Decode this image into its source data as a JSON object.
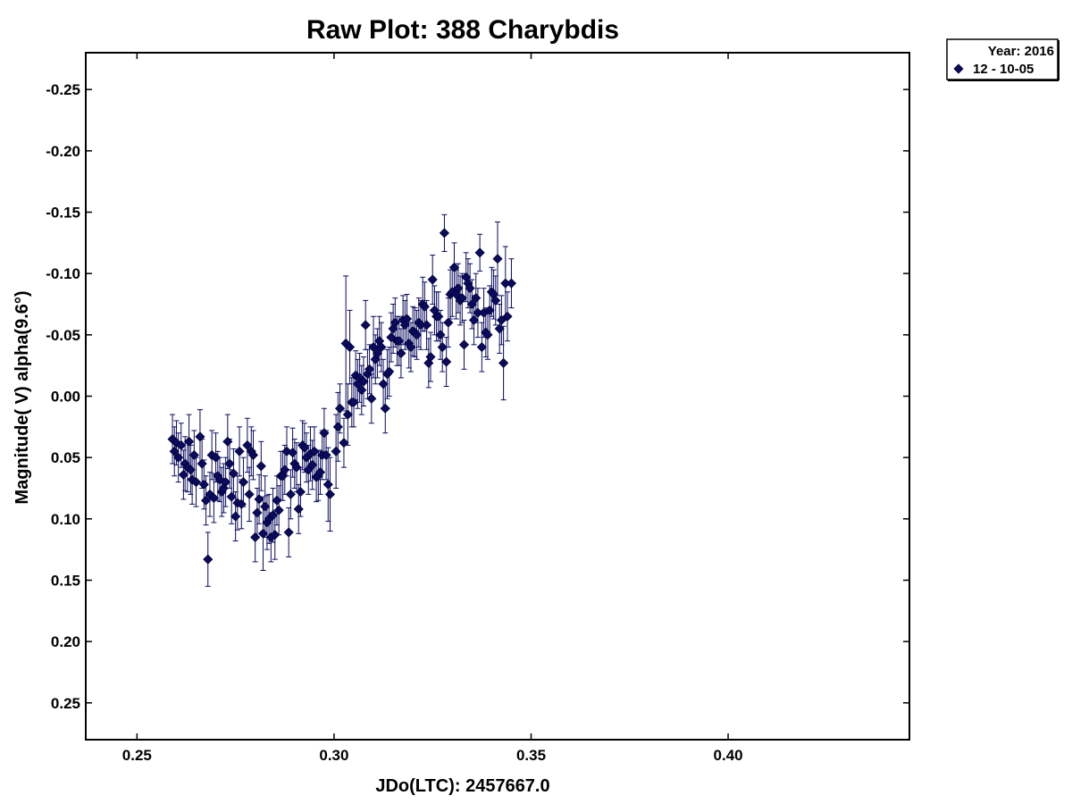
{
  "chart_data": {
    "type": "scatter",
    "title": "Raw Plot: 388 Charybdis",
    "xlabel": "JDo(LTC): 2457667.0",
    "ylabel": "Magnitude( V) alpha(9.6°)",
    "xlim": [
      0.237,
      0.446
    ],
    "ylim": [
      0.28,
      -0.28
    ],
    "y_inverted": true,
    "x_ticks": [
      "0.25",
      "0.30",
      "0.35",
      "0.40"
    ],
    "x_tick_values": [
      0.25,
      0.3,
      0.35,
      0.4
    ],
    "y_ticks": [
      "-0.25",
      "-0.20",
      "-0.15",
      "-0.10",
      "-0.05",
      "0.00",
      "0.05",
      "0.10",
      "0.15",
      "0.20",
      "0.25"
    ],
    "y_tick_values": [
      -0.25,
      -0.2,
      -0.15,
      -0.1,
      -0.05,
      0.0,
      0.05,
      0.1,
      0.15,
      0.2,
      0.25
    ],
    "legend": {
      "placement": "top-right-outside",
      "header": "Year: 2016",
      "entries": [
        "12 - 10-05"
      ]
    },
    "marker": "diamond",
    "color": "#0a0a60",
    "series": [
      {
        "name": "12 - 10-05",
        "points": [
          [
            0.259,
            0.035,
            0.02
          ],
          [
            0.2595,
            0.045,
            0.02
          ],
          [
            0.26,
            0.038,
            0.018
          ],
          [
            0.2605,
            0.05,
            0.02
          ],
          [
            0.2612,
            0.04,
            0.018
          ],
          [
            0.2618,
            0.064,
            0.02
          ],
          [
            0.2622,
            0.055,
            0.022
          ],
          [
            0.2628,
            0.058,
            0.02
          ],
          [
            0.2632,
            0.037,
            0.022
          ],
          [
            0.2636,
            0.06,
            0.02
          ],
          [
            0.264,
            0.068,
            0.02
          ],
          [
            0.2645,
            0.048,
            0.02
          ],
          [
            0.265,
            0.07,
            0.02
          ],
          [
            0.266,
            0.033,
            0.022
          ],
          [
            0.2665,
            0.055,
            0.02
          ],
          [
            0.267,
            0.072,
            0.02
          ],
          [
            0.2675,
            0.085,
            0.02
          ],
          [
            0.268,
            0.133,
            0.022
          ],
          [
            0.2685,
            0.08,
            0.018
          ],
          [
            0.269,
            0.048,
            0.02
          ],
          [
            0.2695,
            0.083,
            0.02
          ],
          [
            0.27,
            0.05,
            0.02
          ],
          [
            0.2705,
            0.065,
            0.02
          ],
          [
            0.271,
            0.068,
            0.018
          ],
          [
            0.2715,
            0.078,
            0.02
          ],
          [
            0.272,
            0.075,
            0.02
          ],
          [
            0.2725,
            0.07,
            0.02
          ],
          [
            0.273,
            0.037,
            0.022
          ],
          [
            0.2735,
            0.055,
            0.02
          ],
          [
            0.274,
            0.082,
            0.022
          ],
          [
            0.2745,
            0.063,
            0.02
          ],
          [
            0.275,
            0.098,
            0.02
          ],
          [
            0.2755,
            0.087,
            0.022
          ],
          [
            0.276,
            0.045,
            0.02
          ],
          [
            0.2765,
            0.088,
            0.02
          ],
          [
            0.277,
            0.07,
            0.02
          ],
          [
            0.278,
            0.04,
            0.022
          ],
          [
            0.2785,
            0.08,
            0.022
          ],
          [
            0.279,
            0.045,
            0.02
          ],
          [
            0.2795,
            0.048,
            0.02
          ],
          [
            0.28,
            0.115,
            0.02
          ],
          [
            0.2805,
            0.095,
            0.02
          ],
          [
            0.281,
            0.084,
            0.02
          ],
          [
            0.2815,
            0.057,
            0.02
          ],
          [
            0.282,
            0.112,
            0.03
          ],
          [
            0.2825,
            0.09,
            0.025
          ],
          [
            0.283,
            0.103,
            0.022
          ],
          [
            0.2835,
            0.1,
            0.02
          ],
          [
            0.284,
            0.115,
            0.02
          ],
          [
            0.2845,
            0.097,
            0.022
          ],
          [
            0.285,
            0.113,
            0.02
          ],
          [
            0.2855,
            0.085,
            0.02
          ],
          [
            0.286,
            0.093,
            0.02
          ],
          [
            0.2865,
            0.065,
            0.02
          ],
          [
            0.287,
            0.065,
            0.02
          ],
          [
            0.2875,
            0.06,
            0.02
          ],
          [
            0.288,
            0.045,
            0.02
          ],
          [
            0.2885,
            0.111,
            0.02
          ],
          [
            0.289,
            0.08,
            0.02
          ],
          [
            0.2895,
            0.046,
            0.02
          ],
          [
            0.29,
            0.055,
            0.02
          ],
          [
            0.2905,
            0.058,
            0.02
          ],
          [
            0.291,
            0.092,
            0.02
          ],
          [
            0.2915,
            0.078,
            0.02
          ],
          [
            0.292,
            0.04,
            0.02
          ],
          [
            0.2925,
            0.042,
            0.02
          ],
          [
            0.293,
            0.05,
            0.02
          ],
          [
            0.2935,
            0.06,
            0.02
          ],
          [
            0.294,
            0.047,
            0.022
          ],
          [
            0.2945,
            0.056,
            0.02
          ],
          [
            0.295,
            0.045,
            0.02
          ],
          [
            0.2955,
            0.066,
            0.02
          ],
          [
            0.296,
            0.065,
            0.02
          ],
          [
            0.2965,
            0.062,
            0.018
          ],
          [
            0.297,
            0.048,
            0.02
          ],
          [
            0.2975,
            0.03,
            0.02
          ],
          [
            0.298,
            0.048,
            0.02
          ],
          [
            0.2985,
            0.072,
            0.03
          ],
          [
            0.299,
            0.08,
            0.03
          ],
          [
            0.3005,
            0.045,
            0.03
          ],
          [
            0.301,
            0.025,
            0.028
          ],
          [
            0.3015,
            0.01,
            0.02
          ],
          [
            0.3025,
            0.038,
            0.02
          ],
          [
            0.303,
            -0.043,
            0.055
          ],
          [
            0.3035,
            0.015,
            0.025
          ],
          [
            0.304,
            -0.04,
            0.03
          ],
          [
            0.3045,
            0.005,
            0.02
          ],
          [
            0.305,
            0.005,
            0.02
          ],
          [
            0.3055,
            -0.017,
            0.02
          ],
          [
            0.306,
            -0.01,
            0.02
          ],
          [
            0.3065,
            -0.015,
            0.02
          ],
          [
            0.307,
            -0.005,
            0.02
          ],
          [
            0.3075,
            -0.012,
            0.02
          ],
          [
            0.308,
            -0.058,
            0.02
          ],
          [
            0.3085,
            -0.018,
            0.02
          ],
          [
            0.309,
            -0.022,
            0.02
          ],
          [
            0.3095,
            0.002,
            0.02
          ],
          [
            0.31,
            -0.04,
            0.025
          ],
          [
            0.3105,
            -0.03,
            0.02
          ],
          [
            0.311,
            -0.035,
            0.02
          ],
          [
            0.3115,
            -0.045,
            0.02
          ],
          [
            0.312,
            -0.04,
            0.02
          ],
          [
            0.3125,
            -0.01,
            0.02
          ],
          [
            0.313,
            0.01,
            0.02
          ],
          [
            0.3135,
            -0.018,
            0.02
          ],
          [
            0.314,
            -0.02,
            0.02
          ],
          [
            0.3145,
            -0.048,
            0.02
          ],
          [
            0.315,
            -0.055,
            0.02
          ],
          [
            0.3155,
            -0.06,
            0.02
          ],
          [
            0.316,
            -0.045,
            0.02
          ],
          [
            0.3165,
            -0.045,
            0.02
          ],
          [
            0.317,
            -0.035,
            0.02
          ],
          [
            0.3175,
            -0.062,
            0.02
          ],
          [
            0.318,
            -0.058,
            0.02
          ],
          [
            0.3185,
            -0.063,
            0.02
          ],
          [
            0.319,
            -0.043,
            0.02
          ],
          [
            0.3195,
            -0.04,
            0.02
          ],
          [
            0.32,
            -0.053,
            0.02
          ],
          [
            0.3205,
            -0.052,
            0.02
          ],
          [
            0.321,
            -0.05,
            0.02
          ],
          [
            0.3215,
            -0.06,
            0.02
          ],
          [
            0.322,
            -0.058,
            0.02
          ],
          [
            0.3225,
            -0.075,
            0.022
          ],
          [
            0.323,
            -0.073,
            0.02
          ],
          [
            0.3235,
            -0.058,
            0.02
          ],
          [
            0.324,
            -0.027,
            0.02
          ],
          [
            0.3245,
            -0.032,
            0.02
          ],
          [
            0.325,
            -0.095,
            0.02
          ],
          [
            0.3255,
            -0.07,
            0.02
          ],
          [
            0.326,
            -0.065,
            0.02
          ],
          [
            0.3265,
            -0.065,
            0.02
          ],
          [
            0.327,
            -0.05,
            0.02
          ],
          [
            0.3275,
            -0.04,
            0.02
          ],
          [
            0.328,
            -0.133,
            0.015
          ],
          [
            0.3285,
            -0.028,
            0.02
          ],
          [
            0.329,
            -0.06,
            0.02
          ],
          [
            0.3295,
            -0.083,
            0.02
          ],
          [
            0.33,
            -0.085,
            0.02
          ],
          [
            0.3305,
            -0.105,
            0.02
          ],
          [
            0.331,
            -0.083,
            0.02
          ],
          [
            0.3315,
            -0.088,
            0.02
          ],
          [
            0.332,
            -0.078,
            0.02
          ],
          [
            0.3325,
            -0.08,
            0.02
          ],
          [
            0.333,
            -0.042,
            0.02
          ],
          [
            0.3335,
            -0.097,
            0.02
          ],
          [
            0.334,
            -0.092,
            0.02
          ],
          [
            0.3345,
            -0.088,
            0.02
          ],
          [
            0.335,
            -0.075,
            0.02
          ],
          [
            0.3355,
            -0.062,
            0.02
          ],
          [
            0.336,
            -0.08,
            0.02
          ],
          [
            0.3365,
            -0.068,
            0.02
          ],
          [
            0.337,
            -0.117,
            0.015
          ],
          [
            0.3375,
            -0.04,
            0.02
          ],
          [
            0.338,
            -0.068,
            0.02
          ],
          [
            0.3385,
            -0.052,
            0.02
          ],
          [
            0.339,
            -0.05,
            0.02
          ],
          [
            0.3395,
            -0.07,
            0.02
          ],
          [
            0.34,
            -0.085,
            0.02
          ],
          [
            0.3405,
            -0.083,
            0.02
          ],
          [
            0.341,
            -0.078,
            0.02
          ],
          [
            0.3415,
            -0.112,
            0.03
          ],
          [
            0.342,
            -0.055,
            0.02
          ],
          [
            0.3425,
            -0.062,
            0.02
          ],
          [
            0.343,
            -0.027,
            0.03
          ],
          [
            0.3435,
            -0.092,
            0.03
          ],
          [
            0.344,
            -0.065,
            0.02
          ],
          [
            0.345,
            -0.092,
            0.02
          ]
        ]
      }
    ]
  }
}
